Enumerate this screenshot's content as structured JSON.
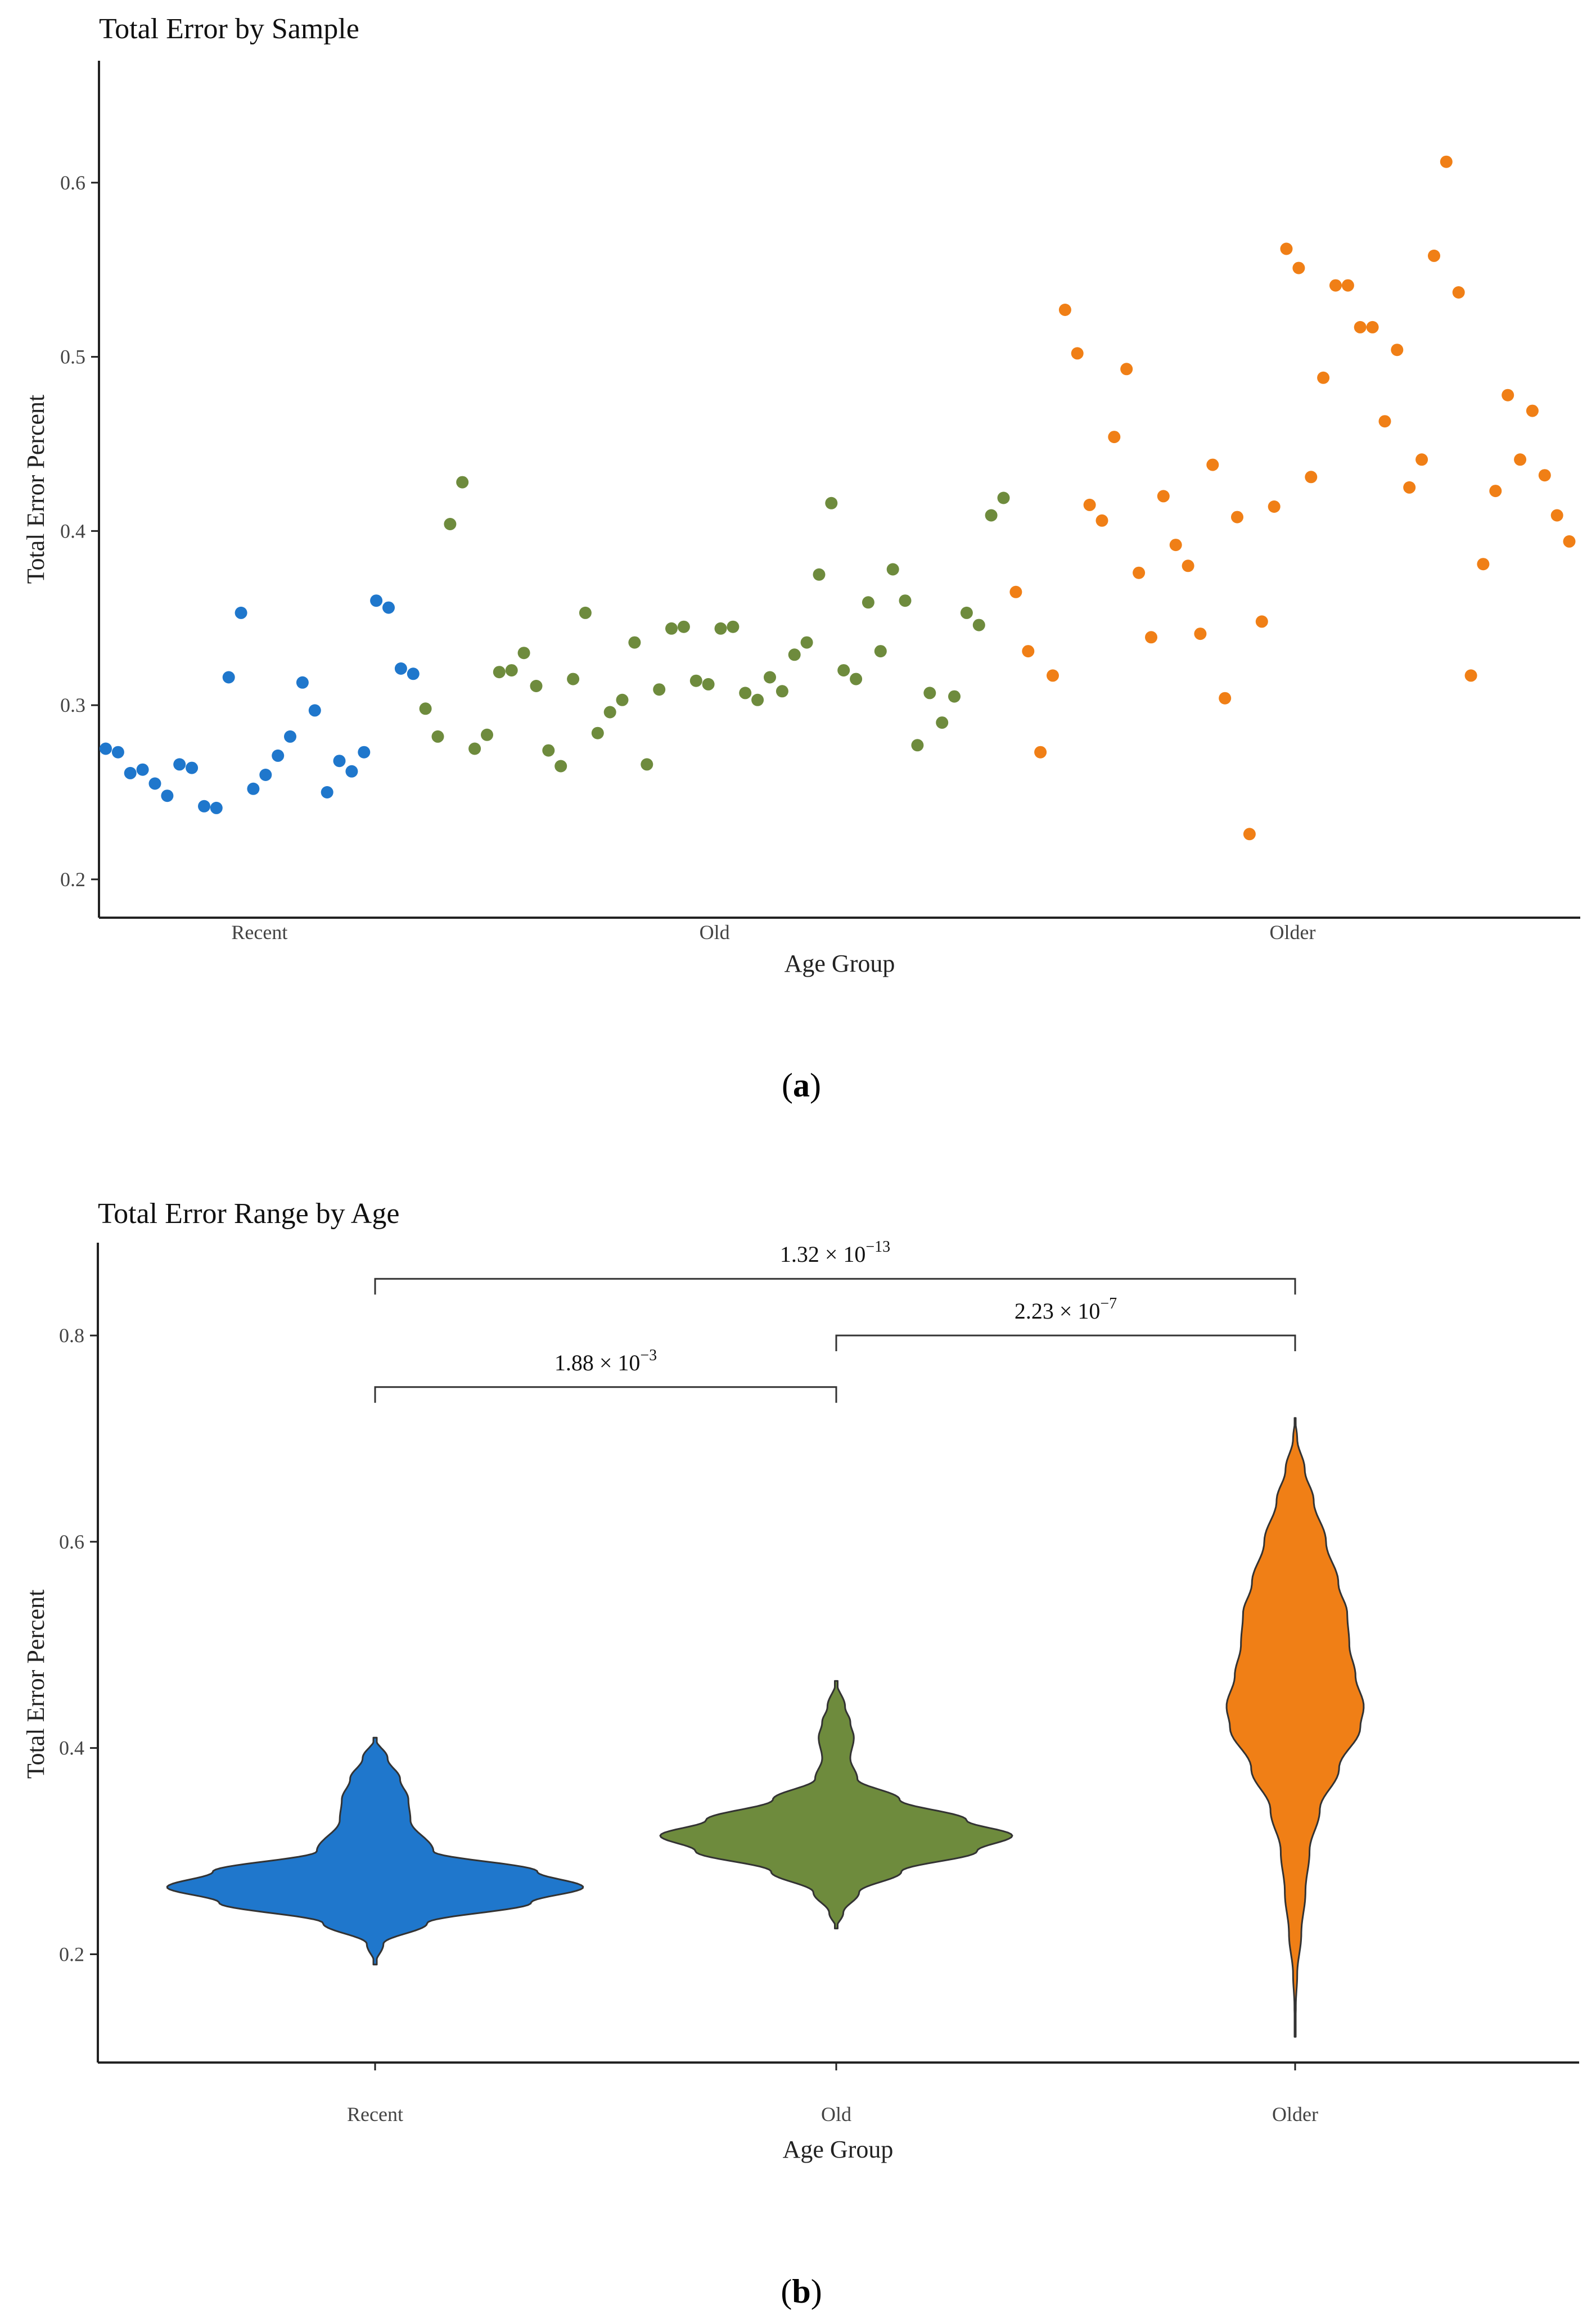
{
  "chart_data": [
    {
      "type": "scatter",
      "title": "Total Error by Sample",
      "xlabel": "Age Group",
      "ylabel": "Total Error Percent",
      "ylim": [
        0.178,
        0.67
      ],
      "yticks": [
        0.2,
        0.3,
        0.4,
        0.5,
        0.6
      ],
      "panel_label": "a",
      "categories": [
        "Recent",
        "Old",
        "Older"
      ],
      "colors": {
        "Recent": "#1F77CC",
        "Old": "#6E8B3D",
        "Older": "#F07F16"
      },
      "series": [
        {
          "name": "Recent",
          "values": [
            0.275,
            0.273,
            0.261,
            0.263,
            0.255,
            0.248,
            0.266,
            0.264,
            0.242,
            0.241,
            0.316,
            0.353,
            0.252,
            0.26,
            0.271,
            0.282,
            0.313,
            0.297,
            0.25,
            0.268,
            0.262,
            0.273,
            0.36,
            0.356,
            0.321,
            0.318
          ]
        },
        {
          "name": "Old",
          "values": [
            0.298,
            0.282,
            0.404,
            0.428,
            0.275,
            0.283,
            0.319,
            0.32,
            0.33,
            0.311,
            0.274,
            0.265,
            0.315,
            0.353,
            0.284,
            0.296,
            0.303,
            0.336,
            0.266,
            0.309,
            0.344,
            0.345,
            0.314,
            0.312,
            0.344,
            0.345,
            0.307,
            0.303,
            0.316,
            0.308,
            0.329,
            0.336,
            0.375,
            0.416,
            0.32,
            0.315,
            0.359,
            0.331,
            0.378,
            0.36,
            0.277,
            0.307,
            0.29,
            0.305,
            0.353,
            0.346,
            0.409,
            0.419
          ]
        },
        {
          "name": "Older",
          "values": [
            0.365,
            0.331,
            0.273,
            0.317,
            0.527,
            0.502,
            0.415,
            0.406,
            0.454,
            0.493,
            0.376,
            0.339,
            0.42,
            0.392,
            0.38,
            0.341,
            0.438,
            0.304,
            0.408,
            0.226,
            0.348,
            0.414,
            0.562,
            0.551,
            0.431,
            0.488,
            0.541,
            0.541,
            0.517,
            0.517,
            0.463,
            0.504,
            0.425,
            0.441,
            0.558,
            0.612,
            0.537,
            0.317,
            0.381,
            0.423,
            0.478,
            0.441,
            0.469,
            0.432,
            0.409,
            0.394
          ]
        }
      ]
    },
    {
      "type": "violin",
      "title": "Total Error Range by Age",
      "xlabel": "Age Group",
      "ylabel": "Total Error Percent",
      "ylim": [
        0.095,
        0.89
      ],
      "yticks": [
        0.2,
        0.4,
        0.6,
        0.8
      ],
      "panel_label": "b",
      "categories": [
        "Recent",
        "Old",
        "Older"
      ],
      "colors": {
        "Recent": "#1F77CC",
        "Old": "#6E8B3D",
        "Older": "#F07F16"
      },
      "series": [
        {
          "name": "Recent",
          "min": 0.19,
          "max": 0.41,
          "profile": [
            [
              0.19,
              0.0
            ],
            [
              0.21,
              0.04
            ],
            [
              0.23,
              0.25
            ],
            [
              0.25,
              0.75
            ],
            [
              0.265,
              1.0
            ],
            [
              0.28,
              0.78
            ],
            [
              0.3,
              0.28
            ],
            [
              0.33,
              0.17
            ],
            [
              0.35,
              0.16
            ],
            [
              0.37,
              0.12
            ],
            [
              0.39,
              0.06
            ],
            [
              0.41,
              0.0
            ]
          ]
        },
        {
          "name": "Old",
          "min": 0.225,
          "max": 0.465,
          "profile": [
            [
              0.225,
              0.0
            ],
            [
              0.24,
              0.04
            ],
            [
              0.26,
              0.13
            ],
            [
              0.28,
              0.37
            ],
            [
              0.3,
              0.8
            ],
            [
              0.315,
              1.0
            ],
            [
              0.33,
              0.74
            ],
            [
              0.35,
              0.36
            ],
            [
              0.37,
              0.12
            ],
            [
              0.39,
              0.08
            ],
            [
              0.41,
              0.1
            ],
            [
              0.425,
              0.08
            ],
            [
              0.44,
              0.05
            ],
            [
              0.465,
              0.0
            ]
          ]
        },
        {
          "name": "Older",
          "min": 0.12,
          "max": 0.72,
          "profile": [
            [
              0.12,
              0.0
            ],
            [
              0.15,
              0.01
            ],
            [
              0.18,
              0.03
            ],
            [
              0.22,
              0.09
            ],
            [
              0.26,
              0.15
            ],
            [
              0.3,
              0.21
            ],
            [
              0.34,
              0.36
            ],
            [
              0.38,
              0.64
            ],
            [
              0.42,
              0.95
            ],
            [
              0.44,
              1.0
            ],
            [
              0.47,
              0.88
            ],
            [
              0.5,
              0.79
            ],
            [
              0.53,
              0.76
            ],
            [
              0.56,
              0.63
            ],
            [
              0.6,
              0.45
            ],
            [
              0.64,
              0.27
            ],
            [
              0.67,
              0.14
            ],
            [
              0.7,
              0.03
            ],
            [
              0.72,
              0.0
            ]
          ]
        }
      ],
      "significance": [
        {
          "from": "Recent",
          "to": "Old",
          "y": 0.75,
          "label": "1.88 × 10",
          "exp": "−3"
        },
        {
          "from": "Old",
          "to": "Older",
          "y": 0.8,
          "label": "2.23 × 10",
          "exp": "−7"
        },
        {
          "from": "Recent",
          "to": "Older",
          "y": 0.855,
          "label": "1.32 × 10",
          "exp": "−13"
        }
      ]
    }
  ]
}
